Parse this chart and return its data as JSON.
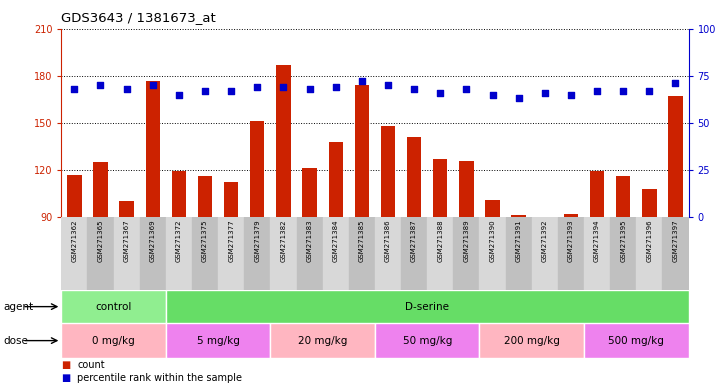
{
  "title": "GDS3643 / 1381673_at",
  "samples": [
    "GSM271362",
    "GSM271365",
    "GSM271367",
    "GSM271369",
    "GSM271372",
    "GSM271375",
    "GSM271377",
    "GSM271379",
    "GSM271382",
    "GSM271383",
    "GSM271384",
    "GSM271385",
    "GSM271386",
    "GSM271387",
    "GSM271388",
    "GSM271389",
    "GSM271390",
    "GSM271391",
    "GSM271392",
    "GSM271393",
    "GSM271394",
    "GSM271395",
    "GSM271396",
    "GSM271397"
  ],
  "counts": [
    117,
    125,
    100,
    177,
    119,
    116,
    112,
    151,
    187,
    121,
    138,
    174,
    148,
    141,
    127,
    126,
    101,
    91,
    87,
    92,
    119,
    116,
    108,
    167
  ],
  "percentiles": [
    68,
    70,
    68,
    70,
    65,
    67,
    67,
    69,
    69,
    68,
    69,
    72,
    70,
    68,
    66,
    68,
    65,
    63,
    66,
    65,
    67,
    67,
    67,
    71
  ],
  "count_baseline": 90,
  "ylim_left": [
    90,
    210
  ],
  "ylim_right": [
    0,
    100
  ],
  "yticks_left": [
    90,
    120,
    150,
    180,
    210
  ],
  "yticks_right": [
    0,
    25,
    50,
    75,
    100
  ],
  "agent_groups": [
    {
      "label": "control",
      "color": "#90EE90",
      "start": 0,
      "end": 4
    },
    {
      "label": "D-serine",
      "color": "#66DD66",
      "start": 4,
      "end": 24
    }
  ],
  "dose_groups": [
    {
      "label": "0 mg/kg",
      "color": "#FFB6C1",
      "start": 0,
      "end": 4
    },
    {
      "label": "5 mg/kg",
      "color": "#EE82EE",
      "start": 4,
      "end": 8
    },
    {
      "label": "20 mg/kg",
      "color": "#FFB6C1",
      "start": 8,
      "end": 12
    },
    {
      "label": "50 mg/kg",
      "color": "#EE82EE",
      "start": 12,
      "end": 16
    },
    {
      "label": "200 mg/kg",
      "color": "#FFB6C1",
      "start": 16,
      "end": 20
    },
    {
      "label": "500 mg/kg",
      "color": "#EE82EE",
      "start": 20,
      "end": 24
    }
  ],
  "bar_color": "#CC2200",
  "dot_color": "#0000CC",
  "bg_color": "#FFFFFF",
  "plot_bg": "#FFFFFF",
  "axis_color_left": "#CC2200",
  "axis_color_right": "#0000CC",
  "legend_count_label": "count",
  "legend_pct_label": "percentile rank within the sample",
  "xtick_bg_even": "#D8D8D8",
  "xtick_bg_odd": "#C0C0C0",
  "agent_label": "agent",
  "dose_label": "dose"
}
